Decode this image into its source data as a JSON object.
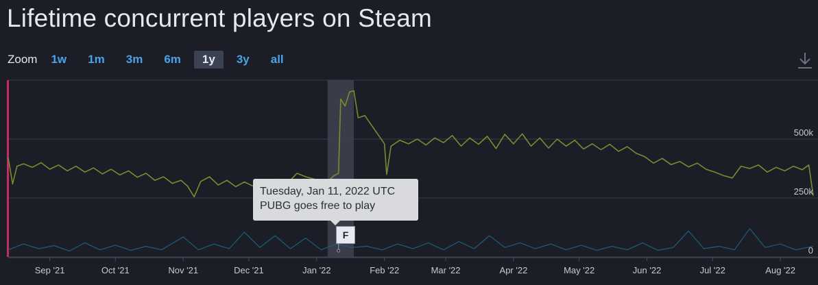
{
  "title": "Lifetime concurrent players on Steam",
  "zoom": {
    "label": "Zoom",
    "options": [
      "1w",
      "1m",
      "3m",
      "6m",
      "1y",
      "3y",
      "all"
    ],
    "selected": "1y"
  },
  "download_icon": "download-icon",
  "tooltip": {
    "line1": "Tuesday, Jan 11, 2022 UTC",
    "line2": "PUBG goes free to play"
  },
  "flag": {
    "label": "F",
    "date": "2022-01-11"
  },
  "colors": {
    "background": "#1b1d27",
    "players_line": "#7f8a2d",
    "twitch_line": "#1d5e7c",
    "highlight_band": "#3f4350",
    "left_marker": "#c72b63",
    "grid": "#3a3d4a"
  },
  "chart_data": {
    "type": "line",
    "title": "Lifetime concurrent players on Steam",
    "x_range": [
      "2021-08-13",
      "2022-08-16"
    ],
    "ylim": [
      0,
      750000
    ],
    "y_ticks": [
      {
        "value": 0,
        "label": "0"
      },
      {
        "value": 250000,
        "label": "250k"
      },
      {
        "value": 500000,
        "label": "500k"
      }
    ],
    "x_ticks": [
      {
        "date": "2021-09-01",
        "label": "Sep '21"
      },
      {
        "date": "2021-10-01",
        "label": "Oct '21"
      },
      {
        "date": "2021-11-01",
        "label": "Nov '21"
      },
      {
        "date": "2021-12-01",
        "label": "Dec '21"
      },
      {
        "date": "2022-01-01",
        "label": "Jan '22"
      },
      {
        "date": "2022-02-01",
        "label": "Feb '22"
      },
      {
        "date": "2022-03-01",
        "label": "Mar '22"
      },
      {
        "date": "2022-04-01",
        "label": "Apr '22"
      },
      {
        "date": "2022-05-01",
        "label": "May '22"
      },
      {
        "date": "2022-06-01",
        "label": "Jun '22"
      },
      {
        "date": "2022-07-01",
        "label": "Jul '22"
      },
      {
        "date": "2022-08-01",
        "label": "Aug '22"
      }
    ],
    "highlight_range": [
      "2022-01-06",
      "2022-01-18"
    ],
    "annotation": {
      "date": "2022-01-11",
      "text": "PUBG goes free to play"
    },
    "series": [
      {
        "key": "players",
        "points": [
          [
            "2021-08-13",
            420000
          ],
          [
            "2021-08-15",
            310000
          ],
          [
            "2021-08-17",
            385000
          ],
          [
            "2021-08-20",
            395000
          ],
          [
            "2021-08-24",
            380000
          ],
          [
            "2021-08-28",
            400000
          ],
          [
            "2021-09-01",
            372000
          ],
          [
            "2021-09-05",
            390000
          ],
          [
            "2021-09-09",
            365000
          ],
          [
            "2021-09-13",
            385000
          ],
          [
            "2021-09-17",
            360000
          ],
          [
            "2021-09-21",
            378000
          ],
          [
            "2021-09-25",
            352000
          ],
          [
            "2021-09-29",
            372000
          ],
          [
            "2021-10-03",
            348000
          ],
          [
            "2021-10-07",
            365000
          ],
          [
            "2021-10-11",
            338000
          ],
          [
            "2021-10-15",
            355000
          ],
          [
            "2021-10-19",
            325000
          ],
          [
            "2021-10-23",
            340000
          ],
          [
            "2021-10-27",
            312000
          ],
          [
            "2021-10-31",
            325000
          ],
          [
            "2021-11-03",
            300000
          ],
          [
            "2021-11-06",
            255000
          ],
          [
            "2021-11-09",
            320000
          ],
          [
            "2021-11-13",
            340000
          ],
          [
            "2021-11-17",
            305000
          ],
          [
            "2021-11-21",
            325000
          ],
          [
            "2021-11-25",
            298000
          ],
          [
            "2021-11-29",
            318000
          ],
          [
            "2021-12-03",
            300000
          ],
          [
            "2021-12-07",
            322000
          ],
          [
            "2021-12-11",
            305000
          ],
          [
            "2021-12-15",
            330000
          ],
          [
            "2021-12-19",
            315000
          ],
          [
            "2021-12-23",
            355000
          ],
          [
            "2021-12-27",
            340000
          ],
          [
            "2021-12-31",
            330000
          ],
          [
            "2022-01-03",
            300000
          ],
          [
            "2022-01-06",
            320000
          ],
          [
            "2022-01-09",
            345000
          ],
          [
            "2022-01-11",
            355000
          ],
          [
            "2022-01-12",
            670000
          ],
          [
            "2022-01-14",
            640000
          ],
          [
            "2022-01-16",
            700000
          ],
          [
            "2022-01-18",
            705000
          ],
          [
            "2022-01-20",
            590000
          ],
          [
            "2022-01-23",
            600000
          ],
          [
            "2022-01-26",
            560000
          ],
          [
            "2022-01-29",
            520000
          ],
          [
            "2022-02-01",
            480000
          ],
          [
            "2022-02-02",
            350000
          ],
          [
            "2022-02-04",
            470000
          ],
          [
            "2022-02-08",
            495000
          ],
          [
            "2022-02-12",
            480000
          ],
          [
            "2022-02-16",
            500000
          ],
          [
            "2022-02-20",
            475000
          ],
          [
            "2022-02-24",
            505000
          ],
          [
            "2022-02-28",
            485000
          ],
          [
            "2022-03-04",
            515000
          ],
          [
            "2022-03-08",
            470000
          ],
          [
            "2022-03-12",
            505000
          ],
          [
            "2022-03-16",
            478000
          ],
          [
            "2022-03-20",
            512000
          ],
          [
            "2022-03-24",
            460000
          ],
          [
            "2022-03-28",
            520000
          ],
          [
            "2022-04-01",
            480000
          ],
          [
            "2022-04-05",
            522000
          ],
          [
            "2022-04-09",
            470000
          ],
          [
            "2022-04-13",
            505000
          ],
          [
            "2022-04-17",
            462000
          ],
          [
            "2022-04-21",
            500000
          ],
          [
            "2022-04-25",
            470000
          ],
          [
            "2022-04-29",
            495000
          ],
          [
            "2022-05-03",
            458000
          ],
          [
            "2022-05-07",
            480000
          ],
          [
            "2022-05-11",
            455000
          ],
          [
            "2022-05-15",
            478000
          ],
          [
            "2022-05-19",
            448000
          ],
          [
            "2022-05-23",
            468000
          ],
          [
            "2022-05-27",
            440000
          ],
          [
            "2022-05-31",
            425000
          ],
          [
            "2022-06-04",
            398000
          ],
          [
            "2022-06-08",
            418000
          ],
          [
            "2022-06-12",
            392000
          ],
          [
            "2022-06-16",
            405000
          ],
          [
            "2022-06-20",
            382000
          ],
          [
            "2022-06-24",
            398000
          ],
          [
            "2022-06-28",
            372000
          ],
          [
            "2022-07-02",
            360000
          ],
          [
            "2022-07-06",
            345000
          ],
          [
            "2022-07-10",
            335000
          ],
          [
            "2022-07-14",
            385000
          ],
          [
            "2022-07-18",
            375000
          ],
          [
            "2022-07-22",
            390000
          ],
          [
            "2022-07-26",
            360000
          ],
          [
            "2022-07-30",
            380000
          ],
          [
            "2022-08-03",
            365000
          ],
          [
            "2022-08-07",
            385000
          ],
          [
            "2022-08-11",
            370000
          ],
          [
            "2022-08-14",
            390000
          ],
          [
            "2022-08-16",
            260000
          ]
        ]
      },
      {
        "key": "twitch",
        "points": [
          [
            "2021-08-13",
            30000
          ],
          [
            "2021-08-20",
            55000
          ],
          [
            "2021-08-27",
            35000
          ],
          [
            "2021-09-03",
            48000
          ],
          [
            "2021-09-10",
            25000
          ],
          [
            "2021-09-17",
            60000
          ],
          [
            "2021-09-24",
            30000
          ],
          [
            "2021-10-01",
            50000
          ],
          [
            "2021-10-08",
            28000
          ],
          [
            "2021-10-15",
            45000
          ],
          [
            "2021-10-22",
            30000
          ],
          [
            "2021-11-01",
            85000
          ],
          [
            "2021-11-08",
            30000
          ],
          [
            "2021-11-15",
            55000
          ],
          [
            "2021-11-22",
            35000
          ],
          [
            "2021-11-29",
            105000
          ],
          [
            "2021-12-06",
            40000
          ],
          [
            "2021-12-13",
            90000
          ],
          [
            "2021-12-20",
            35000
          ],
          [
            "2021-12-27",
            80000
          ],
          [
            "2022-01-03",
            30000
          ],
          [
            "2022-01-10",
            55000
          ],
          [
            "2022-01-17",
            40000
          ],
          [
            "2022-01-24",
            45000
          ],
          [
            "2022-01-31",
            30000
          ],
          [
            "2022-02-07",
            55000
          ],
          [
            "2022-02-14",
            35000
          ],
          [
            "2022-02-21",
            60000
          ],
          [
            "2022-02-28",
            30000
          ],
          [
            "2022-03-07",
            65000
          ],
          [
            "2022-03-14",
            35000
          ],
          [
            "2022-03-21",
            90000
          ],
          [
            "2022-03-28",
            40000
          ],
          [
            "2022-04-04",
            60000
          ],
          [
            "2022-04-11",
            35000
          ],
          [
            "2022-04-18",
            55000
          ],
          [
            "2022-04-25",
            30000
          ],
          [
            "2022-05-02",
            50000
          ],
          [
            "2022-05-09",
            28000
          ],
          [
            "2022-05-16",
            45000
          ],
          [
            "2022-05-23",
            30000
          ],
          [
            "2022-05-30",
            60000
          ],
          [
            "2022-06-06",
            28000
          ],
          [
            "2022-06-13",
            40000
          ],
          [
            "2022-06-20",
            110000
          ],
          [
            "2022-06-27",
            35000
          ],
          [
            "2022-07-04",
            45000
          ],
          [
            "2022-07-11",
            30000
          ],
          [
            "2022-07-18",
            120000
          ],
          [
            "2022-07-25",
            40000
          ],
          [
            "2022-08-01",
            55000
          ],
          [
            "2022-08-08",
            30000
          ],
          [
            "2022-08-16",
            45000
          ]
        ]
      }
    ]
  }
}
